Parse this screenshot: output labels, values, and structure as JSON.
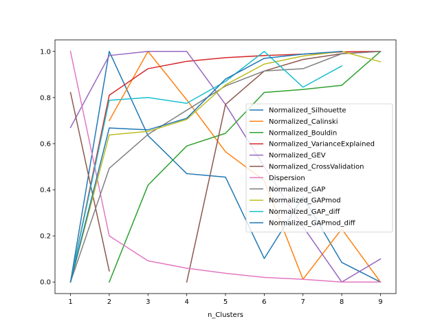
{
  "chart_data": {
    "type": "line",
    "title": "",
    "xlabel": "n_Clusters",
    "ylabel": "",
    "xlim": [
      0.6,
      9.4
    ],
    "ylim": [
      -0.05,
      1.05
    ],
    "x_ticks": [
      1,
      2,
      3,
      4,
      5,
      6,
      7,
      8,
      9
    ],
    "y_ticks": [
      0.0,
      0.2,
      0.4,
      0.6,
      0.8,
      1.0
    ],
    "y_tick_labels": [
      "0.0",
      "0.2",
      "0.4",
      "0.6",
      "0.8",
      "1.0"
    ],
    "grid": false,
    "legend_position": "center-right",
    "series": [
      {
        "name": "Normalized_Silhouette",
        "color": "#1f77b4",
        "x": [
          1,
          2,
          3,
          4,
          5,
          6,
          7,
          8,
          9
        ],
        "y": [
          0.0,
          1.0,
          0.635,
          0.47,
          0.455,
          0.102,
          0.37,
          0.085,
          0.0
        ]
      },
      {
        "name": "Normalized_Calinski",
        "color": "#ff7f0e",
        "x": [
          2,
          3,
          4,
          5,
          6,
          7,
          8,
          9
        ],
        "y": [
          0.7,
          1.0,
          0.79,
          0.565,
          0.44,
          0.012,
          0.23,
          0.0
        ]
      },
      {
        "name": "Normalized_Bouldin",
        "color": "#2ca02c",
        "x": [
          2,
          3,
          4,
          5,
          6,
          7,
          8,
          9
        ],
        "y": [
          0.0,
          0.42,
          0.59,
          0.645,
          0.822,
          0.835,
          0.853,
          1.0
        ]
      },
      {
        "name": "Normalized_VarianceExplained",
        "color": "#d62728",
        "x": [
          1,
          2,
          3,
          4,
          5,
          6,
          7,
          8,
          9
        ],
        "y": [
          0.0,
          0.81,
          0.925,
          0.957,
          0.973,
          0.982,
          0.988,
          0.998,
          1.0
        ]
      },
      {
        "name": "Normalized_GEV",
        "color": "#9467bd",
        "x": [
          1,
          2,
          3,
          4,
          5,
          6,
          7,
          8,
          9
        ],
        "y": [
          0.67,
          0.982,
          1.0,
          1.0,
          0.77,
          0.5,
          0.24,
          0.0,
          0.1
        ]
      },
      {
        "name": "Normalized_CrossValidation",
        "color": "#8c564b",
        "x": [
          1,
          2,
          null,
          4,
          5,
          6,
          7,
          8,
          9
        ],
        "y": [
          0.822,
          0.048,
          null,
          0.0,
          0.77,
          0.915,
          0.965,
          0.99,
          1.0
        ]
      },
      {
        "name": "Dispersion",
        "color": "#e377c2",
        "x": [
          1,
          2,
          3,
          4,
          5,
          6,
          7,
          8,
          9
        ],
        "y": [
          1.0,
          0.2,
          0.092,
          0.06,
          0.038,
          0.02,
          0.012,
          0.0,
          0.0
        ]
      },
      {
        "name": "Normalized_GAP",
        "color": "#7f7f7f",
        "x": [
          1,
          2,
          3,
          4,
          5,
          6,
          7,
          8,
          9
        ],
        "y": [
          0.0,
          0.493,
          0.64,
          0.745,
          0.85,
          0.915,
          0.925,
          0.99,
          1.0
        ]
      },
      {
        "name": "Normalized_GAPmod",
        "color": "#bcbd22",
        "x": [
          1,
          2,
          3,
          4,
          5,
          6,
          7,
          8,
          9
        ],
        "y": [
          0.0,
          0.638,
          0.653,
          0.705,
          0.855,
          0.945,
          0.98,
          1.0,
          0.955
        ]
      },
      {
        "name": "Normalized_GAP_diff",
        "color": "#17becf",
        "x": [
          1,
          2,
          3,
          4,
          5,
          6,
          7,
          8
        ],
        "y": [
          0.0,
          0.788,
          0.8,
          0.775,
          0.87,
          1.0,
          0.845,
          0.937
        ]
      },
      {
        "name": "Normalized_GAPmod_diff",
        "color": "#1f77b4",
        "x": [
          1,
          2,
          3,
          4,
          5,
          6,
          7,
          8
        ],
        "y": [
          0.0,
          0.668,
          0.66,
          0.71,
          0.88,
          0.97,
          0.988,
          1.0
        ]
      }
    ]
  }
}
